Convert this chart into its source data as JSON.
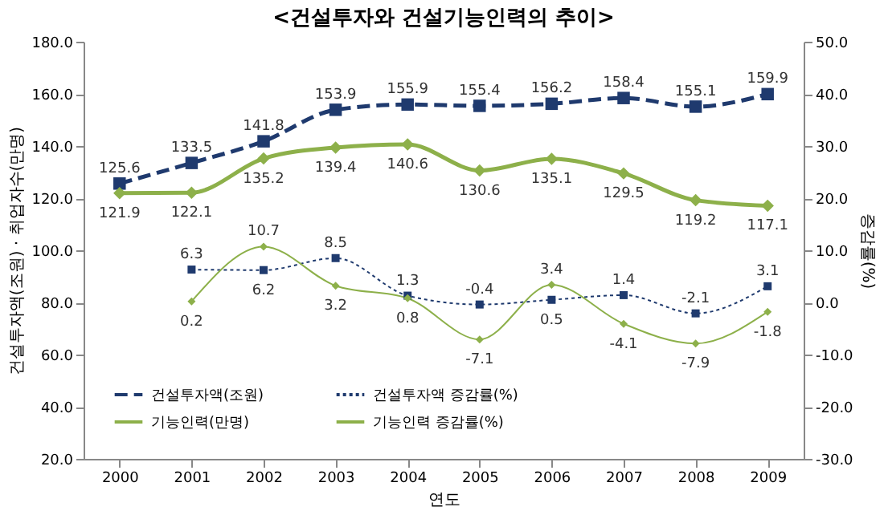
{
  "chart_data": {
    "type": "line",
    "title": "<건설투자와 건설기능인력의 추이>",
    "xlabel": "연도",
    "ylabel": "건설투자액(조원) · 취업자수(만명)",
    "y2label": "증감률(%)",
    "categories": [
      "2000",
      "2001",
      "2002",
      "2003",
      "2004",
      "2005",
      "2006",
      "2007",
      "2008",
      "2009"
    ],
    "series": [
      {
        "name": "건설투자액(조원)",
        "color": "#1f3a6e",
        "line_style": "dashed",
        "marker": "square",
        "values": [
          125.6,
          133.5,
          141.8,
          153.9,
          155.9,
          155.4,
          156.2,
          158.4,
          155.1,
          159.9
        ]
      },
      {
        "name": "기능인력(만명)",
        "color": "#8db04a",
        "line_style": "solid",
        "marker": "diamond",
        "values": [
          121.9,
          122.1,
          135.2,
          139.4,
          140.6,
          130.6,
          135.1,
          129.5,
          119.2,
          117.1
        ]
      },
      {
        "name": "건설투자액 증감률(%)",
        "color": "#1f3a6e",
        "line_style": "dotted",
        "marker": "square",
        "axis": "y2",
        "values": [
          null,
          6.3,
          6.2,
          8.5,
          1.3,
          -0.4,
          0.5,
          1.4,
          -2.1,
          3.1
        ]
      },
      {
        "name": "기능인력 증감률(%)",
        "color": "#8db04a",
        "line_style": "solid",
        "marker": "diamond",
        "axis": "y2",
        "values": [
          null,
          0.2,
          10.7,
          3.2,
          0.8,
          -7.1,
          3.4,
          -4.1,
          -7.9,
          -1.8
        ]
      }
    ],
    "ylim": [
      20,
      180
    ],
    "yticks": [
      {
        "value": 20,
        "label": "20.0"
      },
      {
        "value": 40,
        "label": "40.0"
      },
      {
        "value": 60,
        "label": "60.0"
      },
      {
        "value": 80,
        "label": "80.0"
      },
      {
        "value": 100,
        "label": "100.0"
      },
      {
        "value": 120,
        "label": "120.0"
      },
      {
        "value": 140,
        "label": "140.0"
      },
      {
        "value": 160,
        "label": "160.0"
      },
      {
        "value": 180,
        "label": "180.0"
      }
    ],
    "y2lim": [
      -30,
      50
    ],
    "y2ticks": [
      {
        "value": -30,
        "label": "-30.0"
      },
      {
        "value": -20,
        "label": "-20.0"
      },
      {
        "value": -10,
        "label": "-10.0"
      },
      {
        "value": 0,
        "label": "0.0"
      },
      {
        "value": 10,
        "label": "10.0"
      },
      {
        "value": 20,
        "label": "20.0"
      },
      {
        "value": 30,
        "label": "30.0"
      },
      {
        "value": 40,
        "label": "40.0"
      },
      {
        "value": 50,
        "label": "50.0"
      }
    ],
    "data_labels": true,
    "grid": false,
    "legend": "bottom left"
  }
}
